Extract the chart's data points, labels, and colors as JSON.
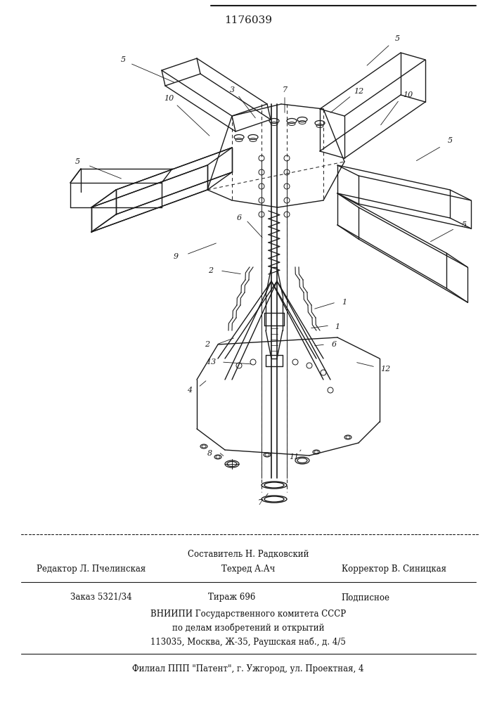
{
  "patent_number": "1176039",
  "bg": "#f5f5f0",
  "dc": "#1a1a1a",
  "fig_width": 7.07,
  "fig_height": 10.0,
  "dpi": 100,
  "footer": {
    "composit": "Составитель Н. Радковский",
    "editor": "Редактор Л. Пчелинская",
    "tekhred": "Техред А.Ач",
    "correct": "Корректор В. Синицкая",
    "order": "Заказ 5321/34",
    "tirazh": "Тираж 696",
    "podp": "Подписное",
    "vniip1": "ВНИИПИ Государственного комитета СССР",
    "vniip2": "по делам изобретений и открытий",
    "vniip3": "113035, Москва, Ж-35, Раушская наб., д. 4/5",
    "filial": "Филиал ППП \"Патент\", г. Ужгород, ул. Проектная, 4"
  }
}
